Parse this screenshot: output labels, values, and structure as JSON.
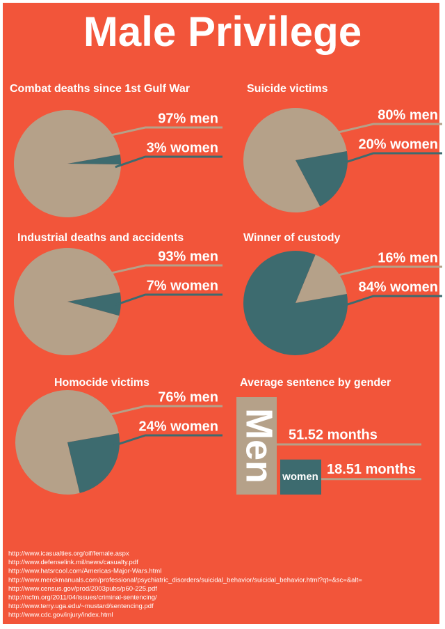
{
  "title": "Male Privilege",
  "chart_data": [
    {
      "type": "pie",
      "title": "Combat deaths since 1st Gulf War",
      "values": [
        97,
        3
      ],
      "value_labels": [
        "97% men",
        "3% women"
      ],
      "colors": [
        "#b5a189",
        "#3d6b6f"
      ]
    },
    {
      "type": "pie",
      "title": "Suicide victims",
      "values": [
        80,
        20
      ],
      "value_labels": [
        "80% men",
        "20% women"
      ],
      "colors": [
        "#b5a189",
        "#3d6b6f"
      ]
    },
    {
      "type": "pie",
      "title": "Industrial deaths and accidents",
      "values": [
        93,
        7
      ],
      "value_labels": [
        "93% men",
        "7% women"
      ],
      "colors": [
        "#b5a189",
        "#3d6b6f"
      ]
    },
    {
      "type": "pie",
      "title": "Winner of custody",
      "values": [
        16,
        84
      ],
      "value_labels": [
        "16% men",
        "84% women"
      ],
      "colors": [
        "#b5a189",
        "#3d6b6f"
      ]
    },
    {
      "type": "pie",
      "title": "Homocide victims",
      "values": [
        76,
        24
      ],
      "value_labels": [
        "76% men",
        "24% women"
      ],
      "colors": [
        "#b5a189",
        "#3d6b6f"
      ]
    },
    {
      "type": "bar",
      "title": "Average sentence by gender",
      "categories": [
        "Men",
        "women"
      ],
      "values": [
        51.52,
        18.51
      ],
      "value_labels": [
        "51.52 months",
        "18.51 months"
      ],
      "colors": [
        "#b5a189",
        "#3d6b6f"
      ]
    }
  ],
  "sources": [
    "http://www.icasualties.org/oif/female.aspx",
    "http://www.defenselink.mil/news/casualty.pdf",
    "http://www.hatsrcool.com/Americas-Major-Wars.html",
    "http://www.merckmanuals.com/professional/psychiatric_disorders/suicidal_behavior/suicidal_behavior.html?qt=&sc=&alt=",
    "http://www.census.gov/prod/2003pubs/p60-225.pdf",
    "http://ncfm.org/2011/04/issues/criminal-sentencing/",
    "http://www.terry.uga.edu/~mustard/sentencing.pdf",
    "http://www.cdc.gov/injury/index.html"
  ]
}
